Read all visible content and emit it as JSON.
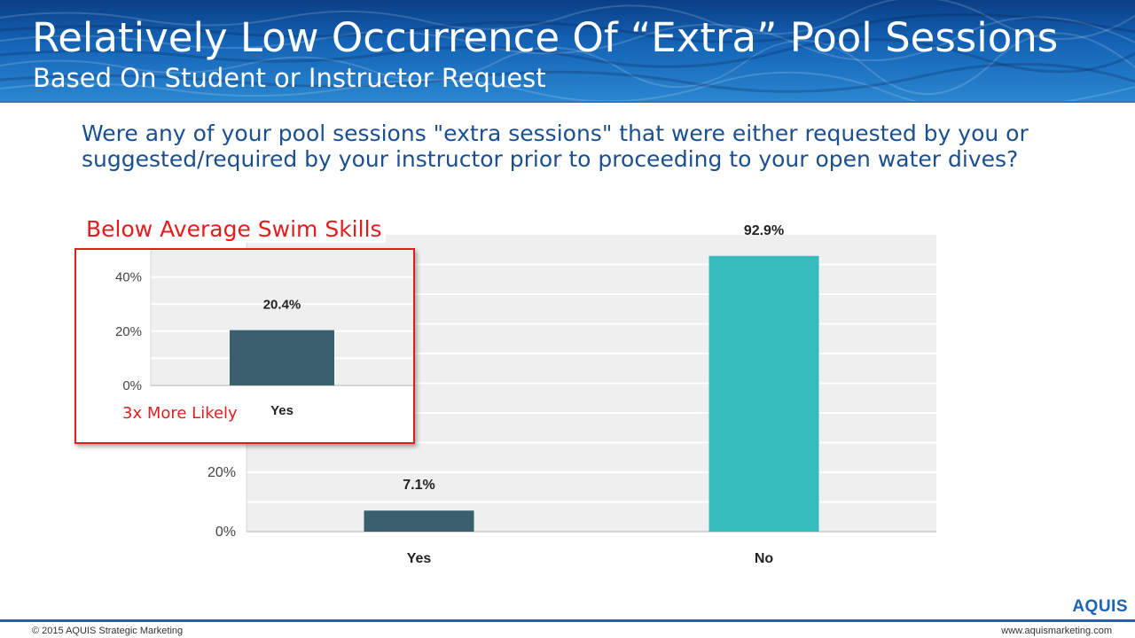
{
  "header": {
    "title": "Relatively Low Occurrence Of “Extra” Pool Sessions",
    "subtitle": "Based On Student or Instructor Request"
  },
  "question": "Were any of your pool sessions \"extra sessions\" that were either requested by you or suggested/required by your instructor prior to proceeding to your open water dives?",
  "chart_data": [
    {
      "type": "bar",
      "title": "",
      "categories": [
        "Yes",
        "No"
      ],
      "values": [
        7.1,
        92.9
      ],
      "data_labels": [
        "7.1%",
        "92.9%"
      ],
      "colors": [
        "#3a5f6d",
        "#36bcbc"
      ],
      "ylim": [
        0,
        100
      ],
      "yticks": [
        0,
        20
      ],
      "ytick_labels": [
        "0%",
        "20%"
      ],
      "xlabel": "",
      "ylabel": "",
      "grid": true
    },
    {
      "type": "bar",
      "title": "Below Average Swim Skills",
      "categories": [
        "Yes"
      ],
      "values": [
        20.4
      ],
      "data_labels": [
        "20.4%"
      ],
      "colors": [
        "#3a5f6d"
      ],
      "ylim": [
        0,
        50
      ],
      "yticks": [
        0,
        20,
        40
      ],
      "ytick_labels": [
        "0%",
        "20%",
        "40%"
      ],
      "annotation": "3x More Likely",
      "grid": true
    }
  ],
  "footer": {
    "copyright": "© 2015 AQUIS Strategic Marketing",
    "website": "www.aquismarketing.com",
    "logo": "AQUIS"
  },
  "colors": {
    "brand_blue": "#1c64b5",
    "callout_red": "#e31d1d",
    "bar_dark": "#3a5f6d",
    "bar_teal": "#36bcbc"
  }
}
